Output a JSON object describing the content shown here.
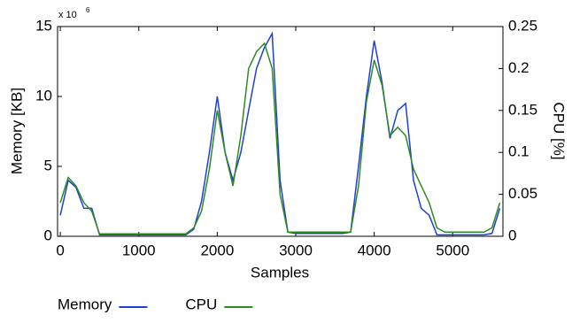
{
  "chart_data": {
    "type": "line",
    "x_label": "Samples",
    "y_label": "Memory [KB]",
    "y2_label": "CPU [%]",
    "y_multiplier": {
      "base": "x 10",
      "exponent": "6"
    },
    "x": [
      0,
      100,
      200,
      300,
      400,
      500,
      600,
      700,
      800,
      900,
      1000,
      1100,
      1200,
      1300,
      1400,
      1500,
      1600,
      1700,
      1800,
      1900,
      2000,
      2100,
      2200,
      2300,
      2400,
      2500,
      2600,
      2700,
      2800,
      2900,
      3000,
      3100,
      3200,
      3300,
      3400,
      3500,
      3600,
      3700,
      3800,
      3900,
      4000,
      4100,
      4200,
      4300,
      4400,
      4500,
      4600,
      4700,
      4800,
      4900,
      5000,
      5100,
      5200,
      5300,
      5400,
      5500,
      5600
    ],
    "series": [
      {
        "name": "Memory",
        "color": "#1f3fd6",
        "axis": "y",
        "values": [
          1.5,
          4,
          3.5,
          2,
          2,
          0.1,
          0.1,
          0.1,
          0.1,
          0.1,
          0.1,
          0.1,
          0.1,
          0.1,
          0.1,
          0.1,
          0.1,
          0.5,
          2.5,
          6,
          10,
          6,
          4,
          6,
          9,
          12,
          13.5,
          14.5,
          4,
          0.3,
          0.2,
          0.2,
          0.2,
          0.2,
          0.2,
          0.2,
          0.2,
          0.3,
          5,
          10,
          14,
          11,
          7,
          9,
          9.5,
          4,
          2,
          1.5,
          0.1,
          0.1,
          0.1,
          0.1,
          0.1,
          0.1,
          0.1,
          0.2,
          2
        ]
      },
      {
        "name": "CPU",
        "color": "#2e8b22",
        "axis": "y2",
        "values": [
          0.04,
          0.07,
          0.06,
          0.04,
          0.03,
          0.003,
          0.003,
          0.003,
          0.003,
          0.003,
          0.003,
          0.003,
          0.003,
          0.003,
          0.003,
          0.003,
          0.003,
          0.01,
          0.03,
          0.08,
          0.15,
          0.1,
          0.06,
          0.12,
          0.2,
          0.22,
          0.23,
          0.2,
          0.05,
          0.005,
          0.005,
          0.005,
          0.005,
          0.005,
          0.005,
          0.005,
          0.005,
          0.005,
          0.06,
          0.16,
          0.21,
          0.18,
          0.12,
          0.13,
          0.12,
          0.08,
          0.06,
          0.04,
          0.01,
          0.005,
          0.005,
          0.005,
          0.005,
          0.005,
          0.005,
          0.01,
          0.04
        ]
      }
    ],
    "xlim": [
      -35,
      5640
    ],
    "xticks": [
      0,
      1000,
      2000,
      3000,
      4000,
      5000
    ],
    "ylim": [
      0,
      15
    ],
    "yticks": [
      0,
      5,
      10,
      15
    ],
    "y2lim": [
      0,
      0.25
    ],
    "y2ticks": [
      0,
      0.05,
      0.1,
      0.15,
      0.2,
      0.25
    ],
    "legend": "bottom"
  }
}
